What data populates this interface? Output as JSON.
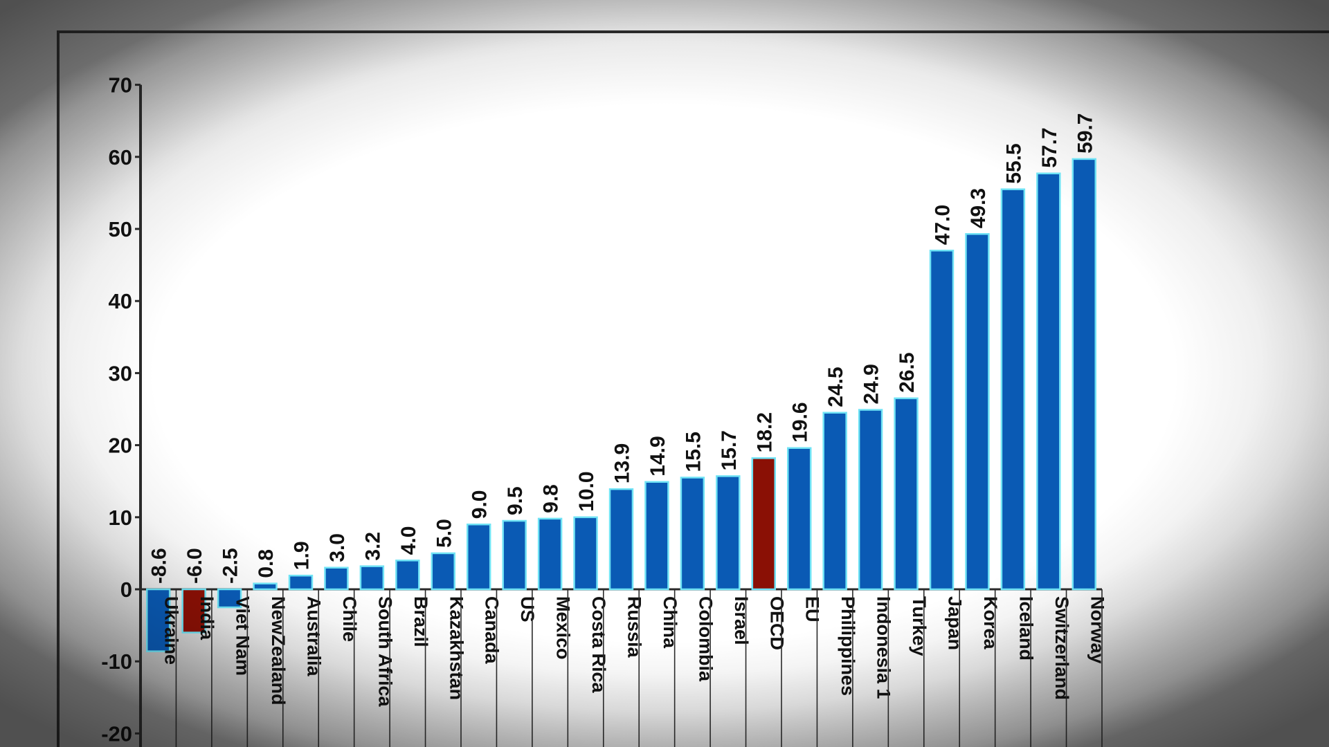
{
  "chart_data": {
    "type": "bar",
    "title": "",
    "xlabel": "",
    "ylabel": "",
    "ylim": [
      -20,
      70
    ],
    "yticks": [
      70,
      60,
      50,
      40,
      30,
      20,
      10,
      0,
      -10,
      -20
    ],
    "categories": [
      "Ukraine",
      "India",
      "Viet Nam",
      "NewZealand",
      "Australia",
      "Chile",
      "South Africa",
      "Brazil",
      "Kazakhstan",
      "Canada",
      "US",
      "Mexico",
      "Costa Rica",
      "Russia",
      "China",
      "Colombia",
      "Israel",
      "OECD",
      "EU",
      "Philippines",
      "Indonesia 1",
      "Turkey",
      "Japan",
      "Korea",
      "Iceland",
      "Switzerland",
      "Norway"
    ],
    "values": [
      -8.6,
      -6.0,
      -2.5,
      0.8,
      1.9,
      3.0,
      3.2,
      4.0,
      5.0,
      9.0,
      9.5,
      9.8,
      10.0,
      13.9,
      14.9,
      15.5,
      15.7,
      18.2,
      19.6,
      24.5,
      24.9,
      26.5,
      47.0,
      49.3,
      55.5,
      57.7,
      59.7
    ],
    "labels": [
      "-8.6",
      "-6.0",
      "-2.5",
      "0.8",
      "1.9",
      "3.0",
      "3.2",
      "4.0",
      "5.0",
      "9.0",
      "9.5",
      "9.8",
      "10.0",
      "13.9",
      "14.9",
      "15.5",
      "15.7",
      "18.2",
      "19.6",
      "24.5",
      "24.9",
      "26.5",
      "47.0",
      "49.3",
      "55.5",
      "57.7",
      "59.7"
    ],
    "highlighted": [
      "India",
      "OECD"
    ],
    "grid": false,
    "colors": {
      "bar": "#0a5ab4",
      "highlight": "#8a1005",
      "bar_edge": "#6fe3f5",
      "axis": "#2a2a2a",
      "text": "#111111"
    }
  }
}
